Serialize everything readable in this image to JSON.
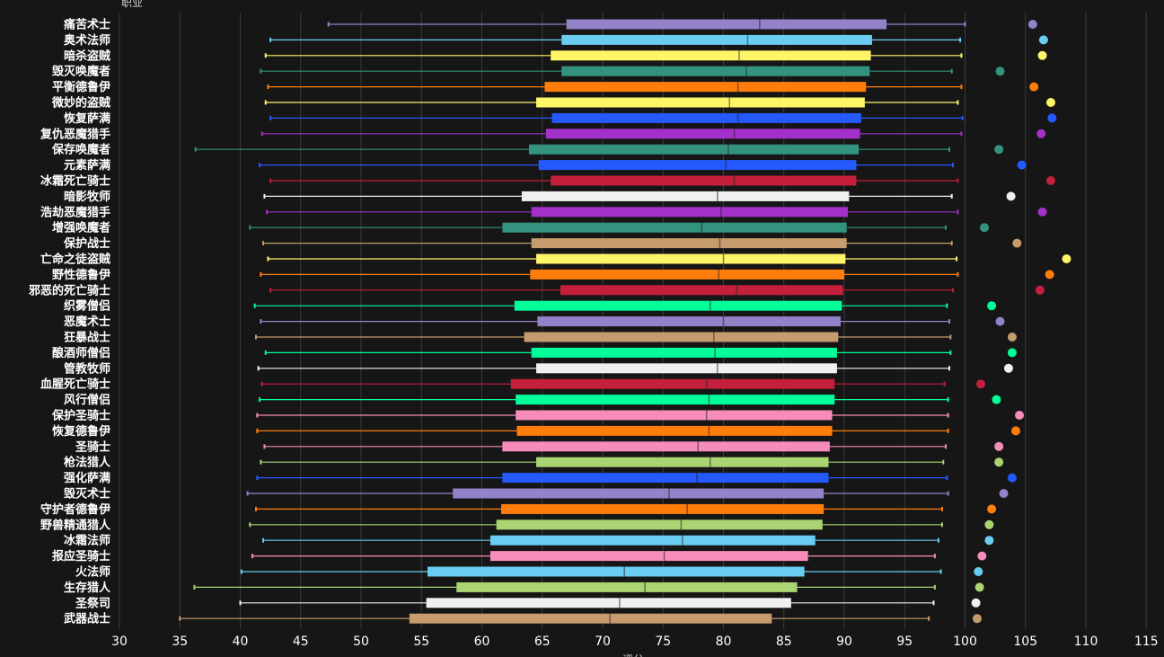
{
  "chart_data": {
    "type": "box",
    "ylabel": "职业",
    "xlabel": "评分",
    "xlim": [
      30,
      116
    ],
    "xticks": [
      30,
      35,
      40,
      45,
      50,
      55,
      60,
      65,
      70,
      75,
      80,
      85,
      90,
      95,
      100,
      105,
      110,
      115
    ],
    "grid": "vertical",
    "series": [
      {
        "name": "痛苦术士",
        "color": "#9482c9",
        "min": 47.3,
        "q1": 67.0,
        "median": 83.0,
        "q3": 93.5,
        "max": 100.0,
        "top": 105.6
      },
      {
        "name": "奥术法师",
        "color": "#69ccf0",
        "min": 42.5,
        "q1": 66.6,
        "median": 82.0,
        "q3": 92.3,
        "max": 99.6,
        "top": 106.5
      },
      {
        "name": "暗杀盗贼",
        "color": "#fff569",
        "min": 42.1,
        "q1": 65.7,
        "median": 81.3,
        "q3": 92.2,
        "max": 99.7,
        "top": 106.4
      },
      {
        "name": "毁灭唤魔者",
        "color": "#33937f",
        "min": 41.7,
        "q1": 66.6,
        "median": 81.9,
        "q3": 92.1,
        "max": 98.9,
        "top": 102.9
      },
      {
        "name": "平衡德鲁伊",
        "color": "#ff7d0a",
        "min": 42.3,
        "q1": 65.2,
        "median": 81.2,
        "q3": 91.8,
        "max": 99.7,
        "top": 105.7
      },
      {
        "name": "微妙的盗贼",
        "color": "#fff569",
        "min": 42.1,
        "q1": 64.5,
        "median": 80.5,
        "q3": 91.7,
        "max": 99.4,
        "top": 107.1
      },
      {
        "name": "恢复萨满",
        "color": "#2459ff",
        "min": 42.5,
        "q1": 65.8,
        "median": 81.2,
        "q3": 91.4,
        "max": 99.8,
        "top": 107.2
      },
      {
        "name": "复仇恶魔猎手",
        "color": "#a330c9",
        "min": 41.8,
        "q1": 65.3,
        "median": 80.9,
        "q3": 91.3,
        "max": 99.7,
        "top": 106.3
      },
      {
        "name": "保存唤魔者",
        "color": "#33937f",
        "min": 36.3,
        "q1": 63.9,
        "median": 80.4,
        "q3": 91.2,
        "max": 98.7,
        "top": 102.8
      },
      {
        "name": "元素萨满",
        "color": "#2459ff",
        "min": 41.6,
        "q1": 64.7,
        "median": 80.2,
        "q3": 91.0,
        "max": 99.0,
        "top": 104.7
      },
      {
        "name": "冰霜死亡骑士",
        "color": "#c41f3b",
        "min": 42.5,
        "q1": 65.7,
        "median": 80.9,
        "q3": 91.0,
        "max": 99.4,
        "top": 107.1
      },
      {
        "name": "暗影牧师",
        "color": "#f0f0f0",
        "min": 42.0,
        "q1": 63.3,
        "median": 79.5,
        "q3": 90.4,
        "max": 98.9,
        "top": 103.8
      },
      {
        "name": "浩劫恶魔猎手",
        "color": "#a330c9",
        "min": 42.2,
        "q1": 64.1,
        "median": 79.8,
        "q3": 90.3,
        "max": 99.4,
        "top": 106.4
      },
      {
        "name": "增强唤魔者",
        "color": "#33937f",
        "min": 40.8,
        "q1": 61.7,
        "median": 78.2,
        "q3": 90.2,
        "max": 98.4,
        "top": 101.6
      },
      {
        "name": "保护战士",
        "color": "#c69b6d",
        "min": 41.9,
        "q1": 64.1,
        "median": 79.7,
        "q3": 90.2,
        "max": 98.9,
        "top": 104.3
      },
      {
        "name": "亡命之徒盗贼",
        "color": "#fff569",
        "min": 42.3,
        "q1": 64.5,
        "median": 80.0,
        "q3": 90.1,
        "max": 99.3,
        "top": 108.4
      },
      {
        "name": "野性德鲁伊",
        "color": "#ff7d0a",
        "min": 41.7,
        "q1": 64.0,
        "median": 79.6,
        "q3": 90.0,
        "max": 99.4,
        "top": 107.0
      },
      {
        "name": "邪恶的死亡骑士",
        "color": "#c41f3b",
        "min": 42.5,
        "q1": 66.5,
        "median": 81.1,
        "q3": 89.9,
        "max": 99.0,
        "top": 106.2
      },
      {
        "name": "织雾僧侣",
        "color": "#00ff98",
        "min": 41.2,
        "q1": 62.7,
        "median": 78.9,
        "q3": 89.8,
        "max": 98.5,
        "top": 102.2
      },
      {
        "name": "恶魔术士",
        "color": "#9482c9",
        "min": 41.7,
        "q1": 64.6,
        "median": 80.0,
        "q3": 89.7,
        "max": 98.7,
        "top": 102.9
      },
      {
        "name": "狂暴战士",
        "color": "#c69b6d",
        "min": 41.3,
        "q1": 63.5,
        "median": 79.2,
        "q3": 89.5,
        "max": 98.8,
        "top": 103.9
      },
      {
        "name": "酿酒师僧侣",
        "color": "#00ff98",
        "min": 42.1,
        "q1": 64.1,
        "median": 79.3,
        "q3": 89.4,
        "max": 98.8,
        "top": 103.9
      },
      {
        "name": "管教牧师",
        "color": "#f0f0f0",
        "min": 41.5,
        "q1": 64.5,
        "median": 79.5,
        "q3": 89.4,
        "max": 98.7,
        "top": 103.6
      },
      {
        "name": "血腥死亡骑士",
        "color": "#c41f3b",
        "min": 41.8,
        "q1": 62.4,
        "median": 78.6,
        "q3": 89.2,
        "max": 98.3,
        "top": 101.3
      },
      {
        "name": "风行僧侣",
        "color": "#00ff98",
        "min": 41.6,
        "q1": 62.8,
        "median": 78.8,
        "q3": 89.2,
        "max": 98.6,
        "top": 102.6
      },
      {
        "name": "保护圣骑士",
        "color": "#f58cba",
        "min": 41.4,
        "q1": 62.8,
        "median": 78.6,
        "q3": 89.0,
        "max": 98.6,
        "top": 104.5
      },
      {
        "name": "恢复德鲁伊",
        "color": "#ff7d0a",
        "min": 41.4,
        "q1": 62.9,
        "median": 78.8,
        "q3": 89.0,
        "max": 98.6,
        "top": 104.2
      },
      {
        "name": "圣骑士",
        "color": "#f58cba",
        "min": 42.0,
        "q1": 61.7,
        "median": 77.9,
        "q3": 88.8,
        "max": 98.4,
        "top": 102.8
      },
      {
        "name": "枪法猎人",
        "color": "#abd473",
        "min": 41.7,
        "q1": 64.5,
        "median": 78.9,
        "q3": 88.7,
        "max": 98.2,
        "top": 102.8
      },
      {
        "name": "强化萨满",
        "color": "#2459ff",
        "min": 41.4,
        "q1": 61.7,
        "median": 77.8,
        "q3": 88.7,
        "max": 98.5,
        "top": 103.9
      },
      {
        "name": "毁灭术士",
        "color": "#9482c9",
        "min": 40.6,
        "q1": 57.6,
        "median": 75.5,
        "q3": 88.3,
        "max": 98.6,
        "top": 103.2
      },
      {
        "name": "守护者德鲁伊",
        "color": "#ff7d0a",
        "min": 41.3,
        "q1": 61.6,
        "median": 77.0,
        "q3": 88.3,
        "max": 98.1,
        "top": 102.2
      },
      {
        "name": "野兽精通猎人",
        "color": "#abd473",
        "min": 40.8,
        "q1": 61.2,
        "median": 76.5,
        "q3": 88.2,
        "max": 98.1,
        "top": 102.0
      },
      {
        "name": "冰霜法师",
        "color": "#69ccf0",
        "min": 41.9,
        "q1": 60.7,
        "median": 76.6,
        "q3": 87.6,
        "max": 97.8,
        "top": 102.0
      },
      {
        "name": "报应圣骑士",
        "color": "#f58cba",
        "min": 41.0,
        "q1": 60.7,
        "median": 75.1,
        "q3": 87.0,
        "max": 97.5,
        "top": 101.4
      },
      {
        "name": "火法师",
        "color": "#69ccf0",
        "min": 40.1,
        "q1": 55.5,
        "median": 71.8,
        "q3": 86.7,
        "max": 98.0,
        "top": 101.1
      },
      {
        "name": "生存猎人",
        "color": "#abd473",
        "min": 36.2,
        "q1": 57.9,
        "median": 73.5,
        "q3": 86.1,
        "max": 97.5,
        "top": 101.2
      },
      {
        "name": "圣祭司",
        "color": "#f0f0f0",
        "min": 40.0,
        "q1": 55.4,
        "median": 71.4,
        "q3": 85.6,
        "max": 97.4,
        "top": 100.9
      },
      {
        "name": "武器战士",
        "color": "#c69b6d",
        "min": 35.0,
        "q1": 54.0,
        "median": 70.6,
        "q3": 84.0,
        "max": 97.0,
        "top": 101.0
      }
    ]
  }
}
